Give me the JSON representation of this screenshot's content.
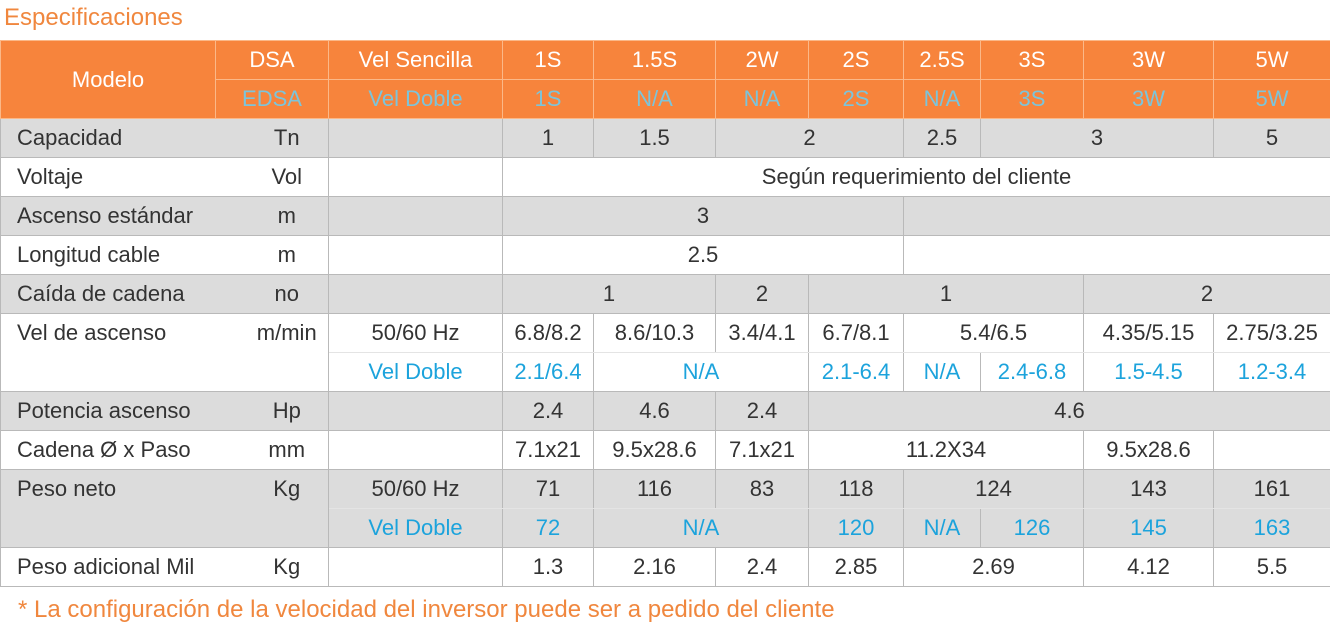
{
  "title": "Especificaciones",
  "table": {
    "header": [
      [
        "Modelo",
        "DSA",
        "Vel Sencilla",
        "1S",
        "1.5S",
        "2W",
        "2S",
        "2.5S",
        "3S",
        "3W",
        "5W"
      ],
      [
        "EDSA",
        "Vel Doble",
        "1S",
        "N/A",
        "N/A",
        "2S",
        "N/A",
        "3S",
        "3W",
        "5W"
      ]
    ],
    "rows": [
      [
        "Capacidad",
        "Tn",
        "1",
        "1.5",
        "2",
        "2.5",
        "3",
        "5"
      ],
      [
        "Voltaje",
        "Vol",
        "Según requerimiento del cliente"
      ],
      [
        "Ascenso estándar",
        "m",
        "3"
      ],
      [
        "Longitud cable",
        "m",
        "2.5"
      ],
      [
        "Caída de cadena",
        "no",
        "1",
        "2",
        "1",
        "2"
      ],
      [
        "Vel de ascenso",
        "m/min",
        "50/60 Hz",
        "6.8/8.2",
        "8.6/10.3",
        "3.4/4.1",
        "6.7/8.1",
        "5.4/6.5",
        "4.35/5.15",
        "2.75/3.25"
      ],
      [
        "Vel Doble",
        "2.1/6.4",
        "N/A",
        "2.1-6.4",
        "N/A",
        "2.4-6.8",
        "1.5-4.5",
        "1.2-3.4"
      ],
      [
        "Potencia ascenso",
        "Hp",
        "2.4",
        "4.6",
        "2.4",
        "4.6"
      ],
      [
        "Cadena Ø x Paso",
        "mm",
        "7.1x21",
        "9.5x28.6",
        "7.1x21",
        "11.2X34",
        "9.5x28.6"
      ],
      [
        "Peso neto",
        "Kg",
        "50/60 Hz",
        "71",
        "116",
        "83",
        "118",
        "124",
        "143",
        "161"
      ],
      [
        "Vel Doble",
        "72",
        "N/A",
        "120",
        "N/A",
        "126",
        "145",
        "163"
      ],
      [
        "Peso adicional Mil",
        "Kg",
        "1.3",
        "2.16",
        "2.4",
        "2.85",
        "2.69",
        "4.12",
        "5.5"
      ]
    ]
  },
  "footnote": "* La configuración de la velocidad del inversor puede ser a pedido del cliente"
}
